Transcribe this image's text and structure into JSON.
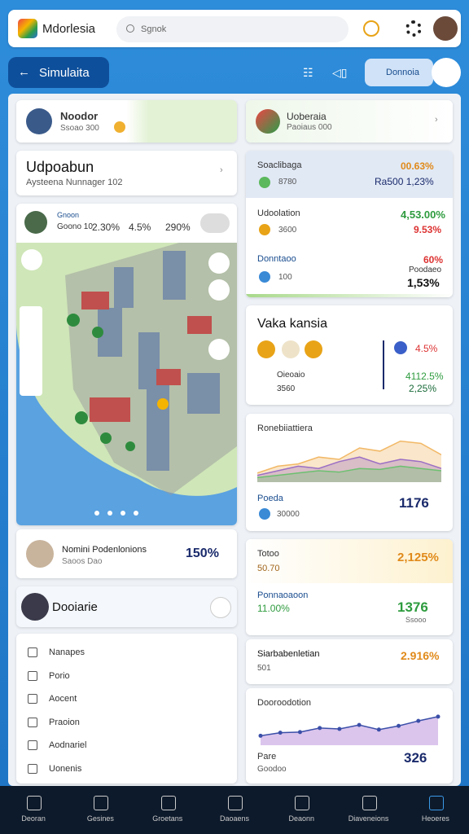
{
  "header": {
    "app_name": "Mdorlesia",
    "search_placeholder": "Sgnok"
  },
  "toolbar": {
    "back_label": "Simulaita",
    "action_label": "Donnoia"
  },
  "left": {
    "profile": {
      "name": "Noodor",
      "detail": "Ssoao 300"
    },
    "summary": {
      "title": "Udpoabun",
      "subtitle": "Aysteena Nunnager 102"
    },
    "map_card": {
      "name": "Gnoon",
      "detail": "Goono 10",
      "chips": [
        "2.30%",
        "4.5%",
        "290%"
      ]
    },
    "person": {
      "name": "Nomini Podenlonions",
      "detail": "Saoos Dao",
      "value": "150%"
    },
    "section": {
      "title": "Dooiarie"
    },
    "menu": [
      "Nanapes",
      "Porio",
      "Aocent",
      "Praoion",
      "Aodnariel",
      "Uonenis"
    ]
  },
  "right": {
    "profile": {
      "name": "Uoberaia",
      "detail": "Paoiaus 000"
    },
    "stats": [
      {
        "title": "Soaclibaga",
        "value": "00.63%",
        "sub": "8780",
        "sub_value": "Ra500 1,23%"
      },
      {
        "title": "Udoolation",
        "value": "4,53.00%",
        "sub": "3600",
        "sub_value": "9.53%"
      },
      {
        "title": "Donntaoo",
        "value": "60%",
        "note": "Poodaeo",
        "sub": "100",
        "sub_value": "1,53%"
      }
    ],
    "kpi": {
      "title": "Vaka kansia",
      "value": "4.5%",
      "rows": [
        {
          "label": "Oieoaio",
          "value": "4112.5%"
        },
        {
          "label": "3560",
          "value": "2,25%"
        }
      ]
    },
    "chart1": {
      "title": "Ronebiiattiera",
      "ylim": [
        0,
        100
      ],
      "series": [
        {
          "color": "#f2b866",
          "values": [
            20,
            35,
            40,
            55,
            50,
            75,
            68,
            90,
            85,
            60
          ]
        },
        {
          "color": "#9b6fc4",
          "values": [
            15,
            25,
            35,
            30,
            45,
            55,
            40,
            50,
            45,
            30
          ]
        },
        {
          "color": "#6cc070",
          "values": [
            10,
            15,
            20,
            25,
            22,
            30,
            28,
            35,
            30,
            25
          ]
        }
      ],
      "label": "Poeda",
      "sub": "30000",
      "value": "1176"
    },
    "totals": {
      "title": "Totoo",
      "sub": "50.70",
      "value": "2,125%",
      "row": {
        "label": "Ponnaoaoon",
        "sub": "11.00%",
        "value": "1376",
        "note": "Ssooo"
      }
    },
    "card": {
      "title": "Siarbabenletian",
      "sub": "501",
      "value": "2.916%"
    },
    "chart2": {
      "title": "Dooroodotion",
      "ylim": [
        0,
        100
      ],
      "color": "#3b4fa8",
      "values": [
        20,
        30,
        32,
        45,
        42,
        55,
        40,
        52,
        68,
        82
      ],
      "label": "Pare",
      "sub": "Goodoo",
      "value": "326"
    }
  },
  "nav": [
    "Deoran",
    "Gesines",
    "Groetans",
    "Daoaens",
    "Deaonn",
    "Diaveneions",
    "Heoeres"
  ]
}
